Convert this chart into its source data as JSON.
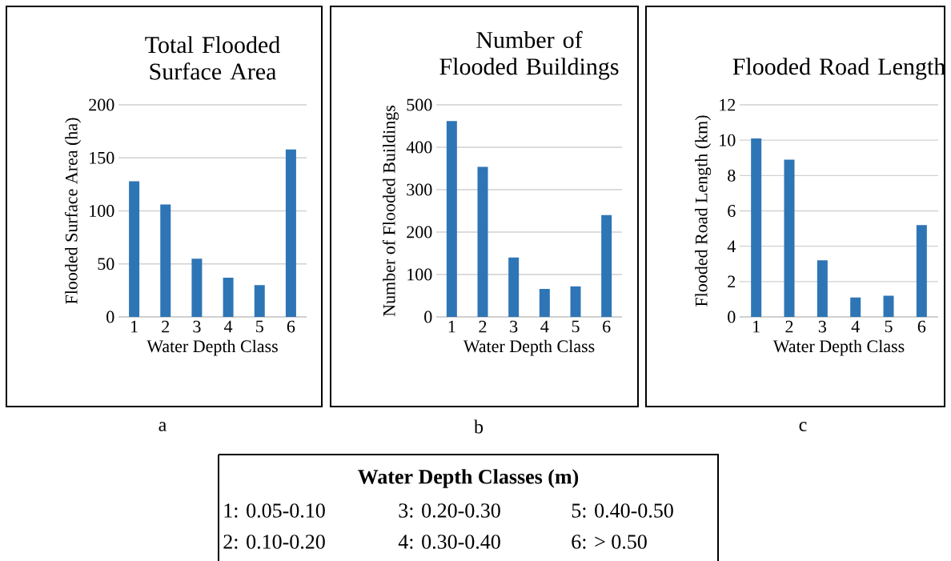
{
  "chart_data": [
    {
      "type": "bar",
      "title": "Total Flooded Surface Area",
      "xlabel": "Water Depth Class",
      "ylabel": "Flooded Surface Area (ha)",
      "categories": [
        "1",
        "2",
        "3",
        "4",
        "5",
        "6"
      ],
      "values": [
        128,
        106,
        55,
        37,
        30,
        158
      ],
      "color": "#2e75b6",
      "ylim": [
        0,
        200
      ],
      "yticks": [
        0,
        50,
        100,
        150,
        200
      ],
      "grid": "y",
      "annotations": [
        "a"
      ]
    },
    {
      "type": "bar",
      "title": "Number of Flooded Buildings",
      "xlabel": "Water Depth Class",
      "ylabel": "Number of Flooded Buildings",
      "categories": [
        "1",
        "2",
        "3",
        "4",
        "5",
        "6"
      ],
      "values": [
        462,
        354,
        140,
        66,
        72,
        240
      ],
      "color": "#2e75b6",
      "ylim": [
        0,
        500
      ],
      "yticks": [
        0,
        100,
        200,
        300,
        400,
        500
      ],
      "grid": "y",
      "annotations": [
        "b"
      ]
    },
    {
      "type": "bar",
      "title": "Flooded Road Length",
      "xlabel": "Water Depth Class",
      "ylabel": "Flooded Road Length (km)",
      "categories": [
        "1",
        "2",
        "3",
        "4",
        "5",
        "6"
      ],
      "values": [
        10.1,
        8.9,
        3.2,
        1.1,
        1.2,
        5.2
      ],
      "color": "#2e75b6",
      "ylim": [
        0,
        12
      ],
      "yticks": [
        0,
        2,
        4,
        6,
        8,
        10,
        12
      ],
      "grid": "y",
      "annotations": [
        "c"
      ]
    },
    {
      "type": "other",
      "title": "Water Depth Classes (m)",
      "annotations": [
        "1: 0.05-0.10",
        "2: 0.10-0.20",
        "3: 0.20-0.30",
        "4: 0.30-0.40",
        "5: 0.40-0.50",
        "6: > 0.50"
      ]
    }
  ]
}
